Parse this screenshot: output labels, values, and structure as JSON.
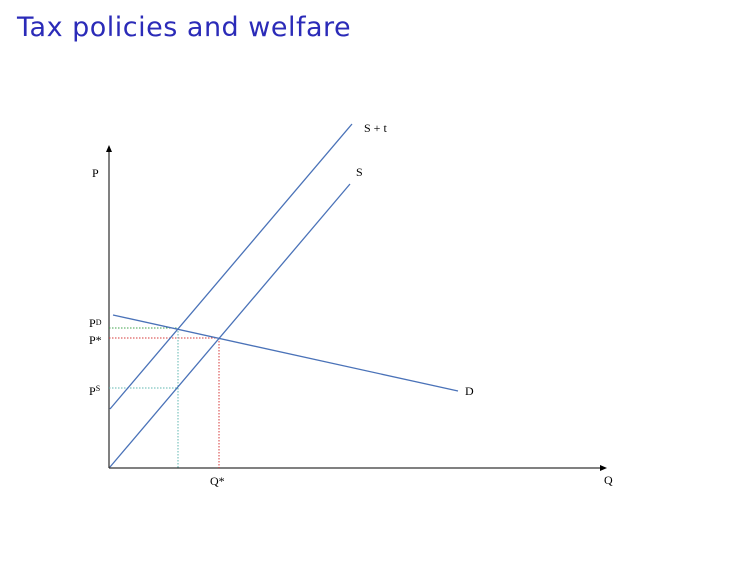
{
  "title": "Tax policies and welfare",
  "diagram": {
    "axes": {
      "y_label": "P",
      "x_label": "Q"
    },
    "curves": {
      "supply_tax_label": "S + t",
      "supply_label": "S",
      "demand_label": "D"
    },
    "price_labels": {
      "pd_main": "P",
      "pd_sup": "D",
      "pstar": "P*",
      "ps_main": "P",
      "ps_sup": "S"
    },
    "quantity_labels": {
      "qstar": "Q*"
    },
    "colors": {
      "curve": "#4a72b8",
      "axis": "#000000",
      "guide_green": "#3fa34d",
      "guide_red": "#d63a3a",
      "guide_teal": "#5fb7b0",
      "title": "#2b2bb8"
    }
  }
}
